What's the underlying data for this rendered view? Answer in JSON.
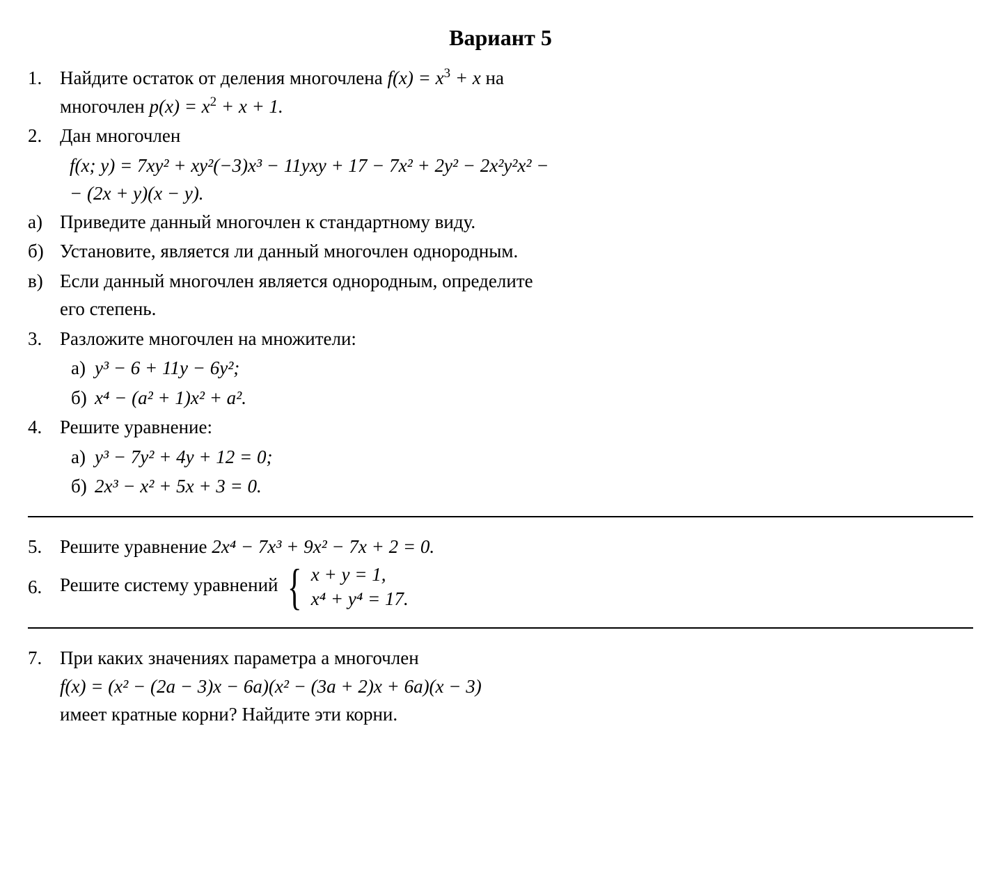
{
  "title": "Вариант 5",
  "p1": {
    "num": "1.",
    "text_a": "Найдите остаток от деления многочлена ",
    "fx": "f(x) = x",
    "fx_tail": " + x",
    "text_b": " на",
    "line2_a": "многочлен ",
    "px": "p(x) = x",
    "px_tail": " + x + 1."
  },
  "p2": {
    "num": "2.",
    "text": "Дан многочлен",
    "eq_l1": "f(x; y) = 7xy² + xy²(−3)x³ − 11yxy + 17 − 7x² + 2y² − 2x²y²x² −",
    "eq_l2": "− (2x + y)(x − y).",
    "a_lbl": "а)",
    "a_txt": "Приведите данный многочлен к стандартному виду.",
    "b_lbl": "б)",
    "b_txt": "Установите, является ли данный многочлен однородным.",
    "c_lbl": "в)",
    "c_txt1": "Если данный многочлен является однородным, определите",
    "c_txt2": "его степень."
  },
  "p3": {
    "num": "3.",
    "text": "Разложите многочлен на множители:",
    "a_lbl": "а)",
    "a_eq": "y³ − 6 + 11y − 6y²;",
    "b_lbl": "б)",
    "b_eq": "x⁴ − (a² + 1)x² + a²."
  },
  "p4": {
    "num": "4.",
    "text": "Решите уравнение:",
    "a_lbl": "а)",
    "a_eq": "y³ − 7y² + 4y + 12 = 0;",
    "b_lbl": "б)",
    "b_eq": "2x³ − x² + 5x + 3 = 0."
  },
  "p5": {
    "num": "5.",
    "text_a": "Решите уравнение ",
    "eq": "2x⁴ − 7x³ + 9x² − 7x + 2 = 0."
  },
  "p6": {
    "num": "6.",
    "text_a": "Решите систему уравнений ",
    "sys1": "x + y = 1,",
    "sys2": "x⁴ + y⁴ = 17."
  },
  "p7": {
    "num": "7.",
    "text1": "При каких значениях параметра a многочлен",
    "eq": "f(x) = (x² − (2a − 3)x − 6a)(x² − (3a + 2)x + 6a)(x − 3)",
    "text2": "имеет кратные корни? Найдите эти корни."
  },
  "style": {
    "background_color": "#ffffff",
    "text_color": "#000000",
    "rule_color": "#000000",
    "font_family": "Times New Roman",
    "base_font_size_pt": 20,
    "title_font_size_pt": 24,
    "title_weight": "bold"
  }
}
